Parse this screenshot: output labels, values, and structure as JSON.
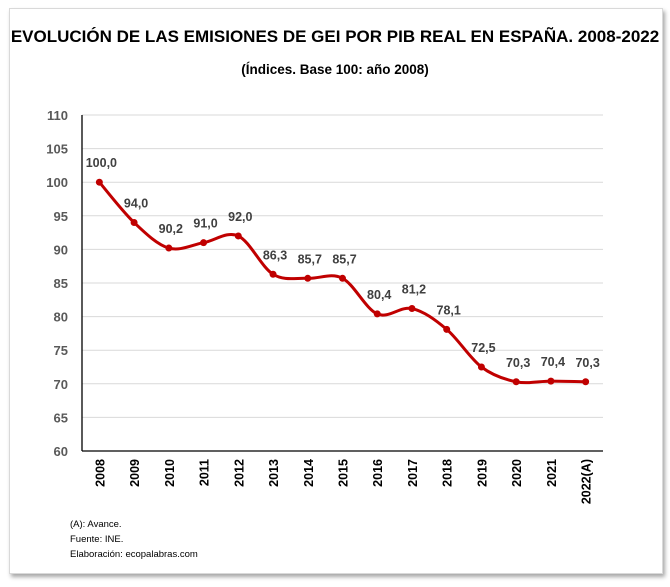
{
  "chart_data": {
    "type": "line",
    "title": "EVOLUCIÓN DE LAS EMISIONES DE GEI POR PIB REAL EN ESPAÑA. 2008-2022",
    "subtitle": "(Índices. Base 100: año 2008)",
    "xlabel": "",
    "ylabel": "",
    "categories": [
      "2008",
      "2009",
      "2010",
      "2011",
      "2012",
      "2013",
      "2014",
      "2015",
      "2016",
      "2017",
      "2018",
      "2019",
      "2020",
      "2021",
      "2022(A)"
    ],
    "values": [
      100.0,
      94.0,
      90.2,
      91.0,
      92.0,
      86.3,
      85.7,
      85.7,
      80.4,
      81.2,
      78.1,
      72.5,
      70.3,
      70.4,
      70.3
    ],
    "data_labels": [
      "100,0",
      "94,0",
      "90,2",
      "91,0",
      "92,0",
      "86,3",
      "85,7",
      "85,7",
      "80,4",
      "81,2",
      "78,1",
      "72,5",
      "70,3",
      "70,4",
      "70,3"
    ],
    "ylim": [
      60,
      110
    ],
    "yticks": [
      60,
      65,
      70,
      75,
      80,
      85,
      90,
      95,
      100,
      105,
      110
    ],
    "grid": true,
    "smooth": true,
    "line_color": "#c00000",
    "legend": "none"
  },
  "notes": [
    "(A): Avance.",
    "Fuente: INE.",
    "Elaboración: ecopalabras.com"
  ]
}
